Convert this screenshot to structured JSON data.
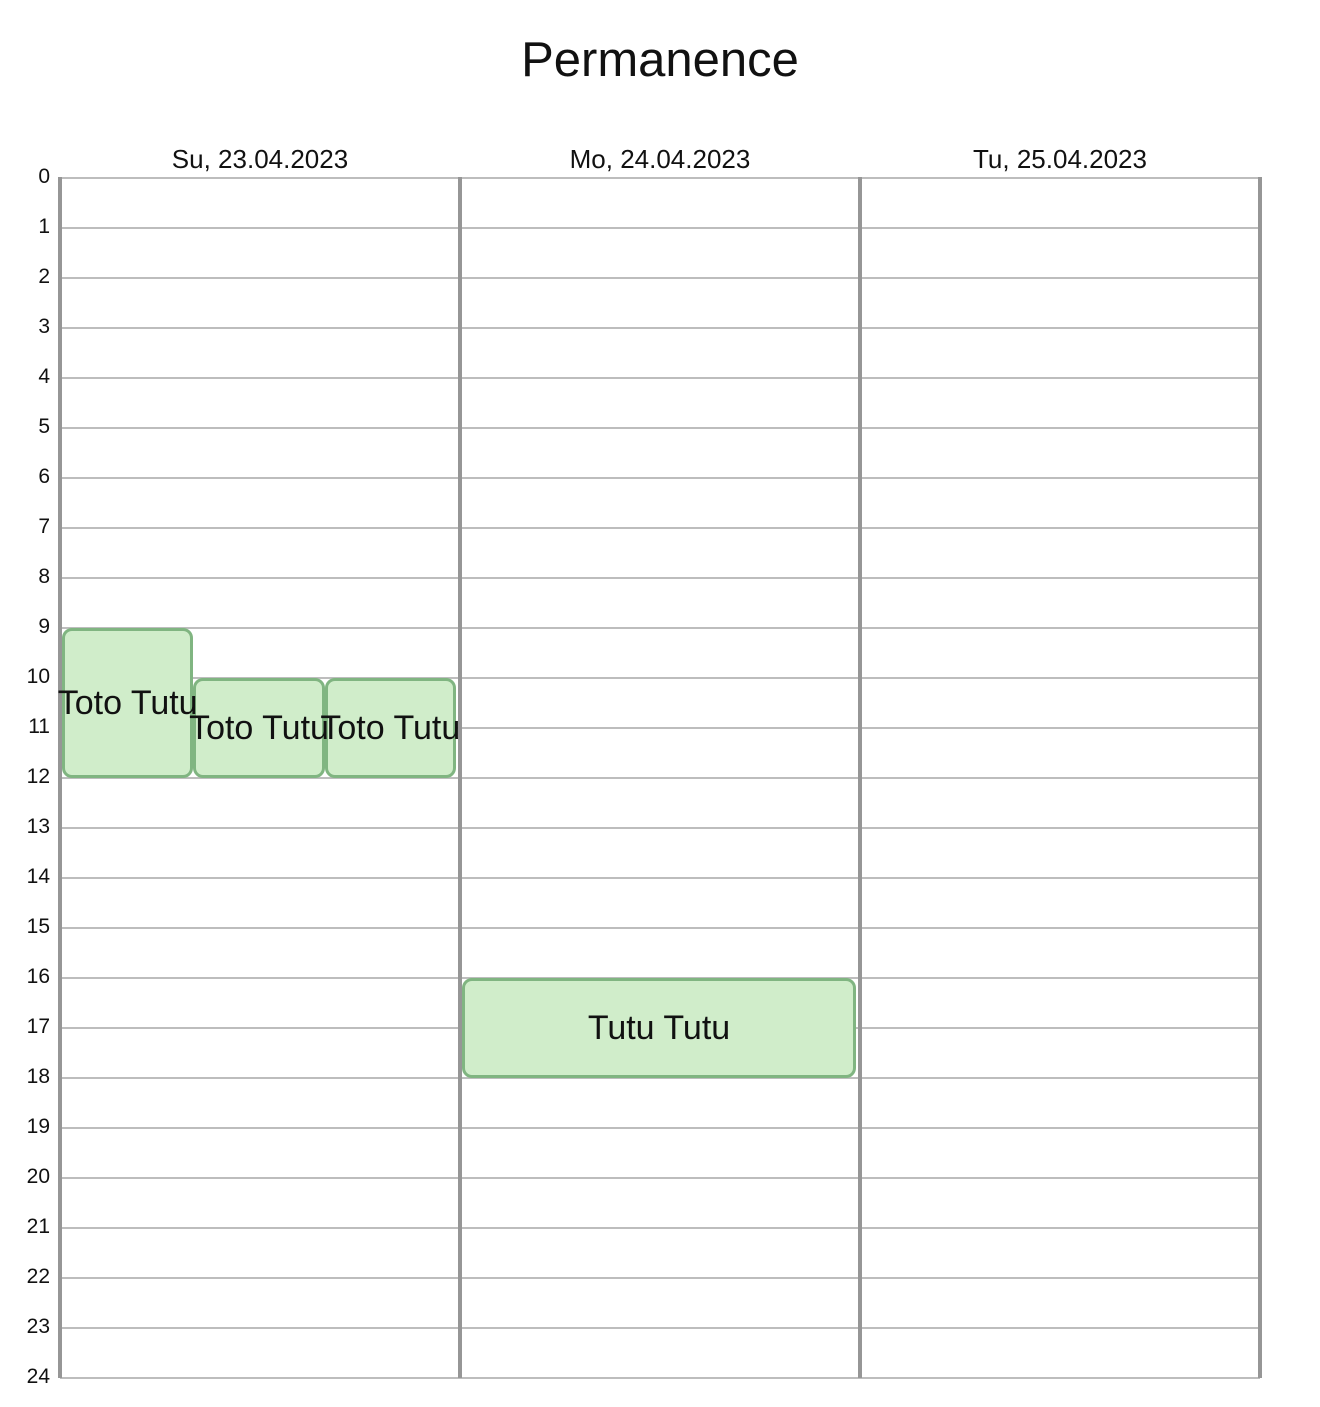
{
  "title": "Permanence",
  "days": [
    "Su, 23.04.2023",
    "Mo, 24.04.2023",
    "Tu, 25.04.2023"
  ],
  "hours": [
    "0",
    "1",
    "2",
    "3",
    "4",
    "5",
    "6",
    "7",
    "8",
    "9",
    "10",
    "11",
    "12",
    "13",
    "14",
    "15",
    "16",
    "17",
    "18",
    "19",
    "20",
    "21",
    "22",
    "23",
    "24"
  ],
  "events": [
    {
      "label": "Toto Tutu",
      "day": 0,
      "start": 9,
      "end": 12,
      "lane": 0,
      "lanes": 3
    },
    {
      "label": "Toto Tutu",
      "day": 0,
      "start": 10,
      "end": 12,
      "lane": 1,
      "lanes": 3
    },
    {
      "label": "Toto Tutu",
      "day": 0,
      "start": 10,
      "end": 12,
      "lane": 2,
      "lanes": 3
    },
    {
      "label": "Tutu Tutu",
      "day": 1,
      "start": 16,
      "end": 18,
      "lane": 0,
      "lanes": 1
    }
  ],
  "colors": {
    "event_fill": "#d0edca",
    "event_border": "#80b581",
    "grid_line": "#bdbdbd",
    "day_divider": "#969696"
  }
}
